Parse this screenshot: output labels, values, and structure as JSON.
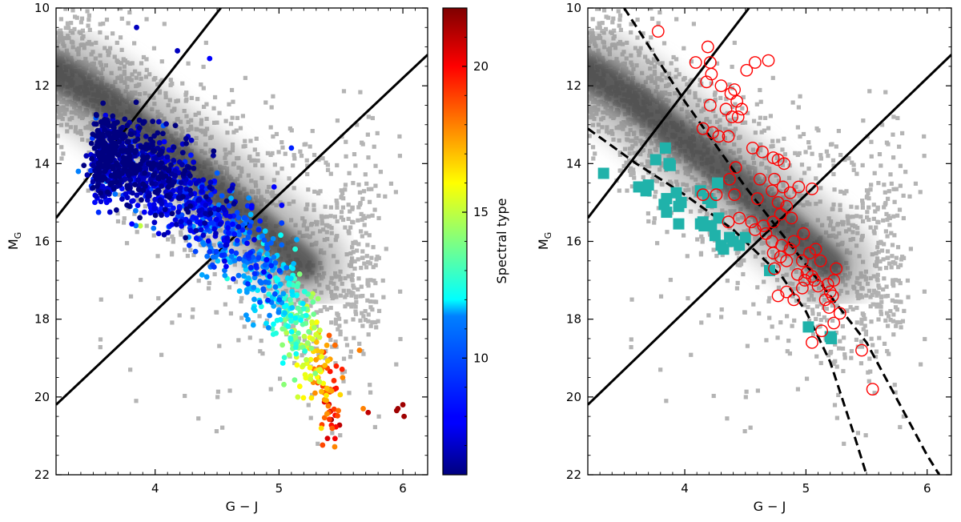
{
  "chart_data": [
    {
      "type": "scatter",
      "panel": "left",
      "xlabel": "G − J",
      "ylabel_main": "M",
      "ylabel_sub": "G",
      "xlim": [
        3.2,
        6.2
      ],
      "ylim": [
        22,
        10
      ],
      "x_ticks": [
        4,
        5,
        6
      ],
      "y_ticks": [
        10,
        12,
        14,
        16,
        18,
        20,
        22
      ],
      "x_tick_labels": [
        "4",
        "5",
        "6"
      ],
      "y_tick_labels": [
        "10",
        "12",
        "14",
        "16",
        "18",
        "20",
        "22"
      ],
      "background_sample_color": "#b4b4b4",
      "density_band": [
        [
          3.2,
          11.6
        ],
        [
          3.6,
          12.4
        ],
        [
          4.0,
          13.4
        ],
        [
          4.4,
          14.4
        ],
        [
          4.8,
          15.5
        ],
        [
          5.2,
          16.6
        ]
      ],
      "solid_lines": [
        {
          "name": "upper-boundary",
          "x": [
            3.2,
            4.53
          ],
          "y": [
            15.4,
            10.0
          ]
        },
        {
          "name": "lower-boundary",
          "x": [
            3.2,
            6.2
          ],
          "y": [
            20.2,
            11.2
          ]
        }
      ],
      "colorbar": {
        "label": "Spectral type",
        "range": [
          6,
          22
        ],
        "ticks": [
          10,
          15,
          20
        ],
        "tick_labels": [
          "10",
          "15",
          "20"
        ],
        "colormap": "jet"
      },
      "series": [
        {
          "name": "spectral-type-sample",
          "marker": "filled-circle",
          "anchors": [
            {
              "x": 3.7,
              "y": 13.9,
              "spt": 6.5
            },
            {
              "x": 4.0,
              "y": 14.3,
              "spt": 7.0
            },
            {
              "x": 4.3,
              "y": 14.9,
              "spt": 7.8
            },
            {
              "x": 4.55,
              "y": 15.6,
              "spt": 8.6
            },
            {
              "x": 4.75,
              "y": 16.3,
              "spt": 9.6
            },
            {
              "x": 4.95,
              "y": 17.1,
              "spt": 11.0
            },
            {
              "x": 5.15,
              "y": 18.0,
              "spt": 13.5
            },
            {
              "x": 5.3,
              "y": 19.0,
              "spt": 16.5
            },
            {
              "x": 5.4,
              "y": 20.0,
              "spt": 19.0
            }
          ],
          "outliers": [
            {
              "x": 3.38,
              "y": 14.2,
              "spt": 10.0
            },
            {
              "x": 3.85,
              "y": 10.5,
              "spt": 7.0
            },
            {
              "x": 4.44,
              "y": 11.3,
              "spt": 8.0
            },
            {
              "x": 4.18,
              "y": 11.1,
              "spt": 7.0
            },
            {
              "x": 5.1,
              "y": 13.6,
              "spt": 8.5
            },
            {
              "x": 4.96,
              "y": 14.6,
              "spt": 8.0
            },
            {
              "x": 3.88,
              "y": 15.6,
              "spt": 15.0
            },
            {
              "x": 5.68,
              "y": 20.3,
              "spt": 18.0
            },
            {
              "x": 5.72,
              "y": 20.4,
              "spt": 21.0
            },
            {
              "x": 5.65,
              "y": 18.8,
              "spt": 18.0
            },
            {
              "x": 5.96,
              "y": 20.3,
              "spt": 21.5
            },
            {
              "x": 6.0,
              "y": 20.2,
              "spt": 21.5
            },
            {
              "x": 6.01,
              "y": 20.5,
              "spt": 21.5
            },
            {
              "x": 5.95,
              "y": 20.35,
              "spt": 21.5
            }
          ]
        }
      ]
    },
    {
      "type": "scatter",
      "panel": "right",
      "xlabel": "G − J",
      "ylabel_main": "M",
      "ylabel_sub": "G",
      "xlim": [
        3.2,
        6.2
      ],
      "ylim": [
        22,
        10
      ],
      "x_ticks": [
        4,
        5,
        6
      ],
      "y_ticks": [
        10,
        12,
        14,
        16,
        18,
        20,
        22
      ],
      "x_tick_labels": [
        "4",
        "5",
        "6"
      ],
      "y_tick_labels": [
        "10",
        "12",
        "14",
        "16",
        "18",
        "20",
        "22"
      ],
      "solid_lines": [
        {
          "name": "upper-boundary",
          "x": [
            3.2,
            4.53
          ],
          "y": [
            15.4,
            10.0
          ]
        },
        {
          "name": "lower-boundary",
          "x": [
            3.2,
            6.2
          ],
          "y": [
            20.2,
            11.2
          ]
        }
      ],
      "dashed_lines": [
        {
          "name": "upper-sequence-fit",
          "x": [
            3.5,
            4.0,
            4.5,
            5.0,
            5.5,
            6.0,
            6.1
          ],
          "y": [
            10.0,
            12.4,
            14.6,
            16.6,
            18.6,
            21.5,
            22.0
          ]
        },
        {
          "name": "lower-sequence-fit",
          "x": [
            3.2,
            3.6,
            4.0,
            4.4,
            4.8,
            5.0,
            5.2,
            5.4,
            5.5
          ],
          "y": [
            13.1,
            14.0,
            14.8,
            15.7,
            16.9,
            17.8,
            19.1,
            21.0,
            22.0
          ]
        }
      ],
      "series": [
        {
          "name": "red-open-circles",
          "marker": "open-circle",
          "color": "#ff0000",
          "points": [
            [
              3.78,
              10.6
            ],
            [
              4.09,
              11.4
            ],
            [
              4.19,
              11.0
            ],
            [
              4.21,
              11.4
            ],
            [
              4.22,
              11.7
            ],
            [
              4.58,
              11.4
            ],
            [
              4.69,
              11.35
            ],
            [
              4.51,
              11.6
            ],
            [
              4.18,
              11.9
            ],
            [
              4.3,
              12.0
            ],
            [
              4.38,
              12.2
            ],
            [
              4.41,
              12.1
            ],
            [
              4.43,
              12.4
            ],
            [
              4.21,
              12.5
            ],
            [
              4.34,
              12.6
            ],
            [
              4.47,
              12.6
            ],
            [
              4.39,
              12.8
            ],
            [
              4.44,
              12.8
            ],
            [
              4.23,
              13.2
            ],
            [
              4.15,
              13.1
            ],
            [
              4.28,
              13.3
            ],
            [
              4.36,
              13.3
            ],
            [
              4.56,
              13.6
            ],
            [
              4.64,
              13.7
            ],
            [
              4.73,
              13.85
            ],
            [
              4.77,
              13.9
            ],
            [
              4.82,
              14.0
            ],
            [
              4.42,
              14.1
            ],
            [
              4.37,
              14.4
            ],
            [
              4.62,
              14.4
            ],
            [
              4.74,
              14.4
            ],
            [
              4.81,
              14.6
            ],
            [
              4.72,
              14.7
            ],
            [
              4.94,
              14.6
            ],
            [
              4.87,
              14.75
            ],
            [
              4.15,
              14.8
            ],
            [
              4.26,
              14.8
            ],
            [
              4.41,
              14.8
            ],
            [
              4.6,
              14.9
            ],
            [
              5.05,
              14.65
            ],
            [
              4.77,
              15.0
            ],
            [
              4.84,
              15.1
            ],
            [
              4.79,
              15.3
            ],
            [
              4.88,
              15.4
            ],
            [
              4.73,
              15.5
            ],
            [
              4.65,
              15.6
            ],
            [
              4.55,
              15.5
            ],
            [
              4.45,
              15.4
            ],
            [
              4.36,
              15.5
            ],
            [
              4.58,
              15.7
            ],
            [
              4.67,
              15.8
            ],
            [
              4.72,
              16.0
            ],
            [
              4.8,
              16.1
            ],
            [
              4.87,
              16.2
            ],
            [
              4.73,
              16.3
            ],
            [
              4.79,
              16.4
            ],
            [
              4.84,
              16.5
            ],
            [
              4.98,
              15.8
            ],
            [
              4.9,
              16.0
            ],
            [
              5.03,
              16.3
            ],
            [
              5.08,
              16.2
            ],
            [
              5.12,
              16.5
            ],
            [
              4.97,
              16.5
            ],
            [
              5.01,
              16.8
            ],
            [
              5.05,
              16.9
            ],
            [
              4.93,
              16.85
            ],
            [
              4.99,
              17.0
            ],
            [
              5.07,
              17.0
            ],
            [
              5.1,
              17.15
            ],
            [
              5.18,
              17.1
            ],
            [
              5.23,
              17.0
            ],
            [
              5.25,
              16.7
            ],
            [
              5.2,
              17.3
            ],
            [
              5.16,
              17.5
            ],
            [
              5.19,
              17.7
            ],
            [
              5.22,
              17.4
            ],
            [
              5.28,
              17.85
            ],
            [
              5.23,
              18.1
            ],
            [
              5.13,
              18.3
            ],
            [
              5.05,
              18.6
            ],
            [
              5.46,
              18.8
            ],
            [
              5.55,
              19.8
            ],
            [
              4.74,
              16.7
            ],
            [
              4.84,
              17.3
            ],
            [
              4.9,
              17.5
            ],
            [
              4.97,
              17.2
            ],
            [
              4.77,
              17.4
            ]
          ]
        },
        {
          "name": "cyan-filled-squares",
          "marker": "filled-square",
          "color": "#20b2aa",
          "points": [
            [
              3.33,
              14.25
            ],
            [
              3.62,
              14.6
            ],
            [
              3.68,
              14.7
            ],
            [
              3.7,
              14.55
            ],
            [
              3.76,
              13.9
            ],
            [
              3.84,
              13.6
            ],
            [
              3.87,
              14.0
            ],
            [
              3.88,
              14.05
            ],
            [
              3.93,
              14.75
            ],
            [
              3.97,
              15.0
            ],
            [
              3.85,
              14.9
            ],
            [
              3.83,
              15.05
            ],
            [
              3.85,
              15.25
            ],
            [
              3.95,
              15.1
            ],
            [
              3.95,
              15.55
            ],
            [
              4.13,
              14.7
            ],
            [
              4.19,
              14.9
            ],
            [
              4.22,
              15.0
            ],
            [
              4.27,
              14.5
            ],
            [
              4.28,
              15.4
            ],
            [
              4.22,
              15.6
            ],
            [
              4.15,
              15.5
            ],
            [
              4.16,
              15.6
            ],
            [
              4.13,
              15.55
            ],
            [
              4.25,
              15.85
            ],
            [
              4.3,
              16.1
            ],
            [
              4.37,
              15.9
            ],
            [
              4.32,
              16.2
            ],
            [
              4.5,
              15.9
            ],
            [
              4.45,
              16.1
            ],
            [
              4.4,
              16.0
            ],
            [
              4.7,
              16.75
            ],
            [
              5.02,
              18.2
            ],
            [
              5.2,
              18.45
            ],
            [
              5.21,
              18.5
            ]
          ]
        }
      ]
    }
  ]
}
